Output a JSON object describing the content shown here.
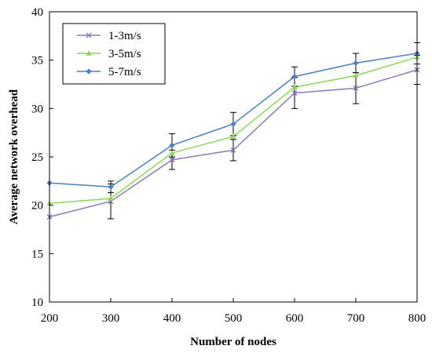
{
  "chart_data": {
    "type": "line",
    "title": "",
    "xlabel": "Number of nodes",
    "ylabel": "Average network overhead",
    "x": [
      200,
      300,
      400,
      500,
      600,
      700,
      800
    ],
    "xlim": [
      200,
      800
    ],
    "ylim": [
      10,
      40
    ],
    "xticks": [
      "200",
      "300",
      "400",
      "500",
      "600",
      "700",
      "800"
    ],
    "yticks": [
      "10",
      "15",
      "20",
      "25",
      "30",
      "35",
      "40"
    ],
    "grid": false,
    "legend_position": "top-left",
    "series": [
      {
        "name": "1-3m/s",
        "color": "#8a7bb5",
        "marker": "x",
        "values": [
          18.8,
          20.4,
          24.7,
          25.7,
          31.6,
          32.1,
          34.0
        ],
        "error": [
          null,
          1.8,
          1.0,
          1.1,
          1.6,
          1.6,
          1.5
        ]
      },
      {
        "name": "3-5m/s",
        "color": "#8ed65a",
        "marker": "triangle",
        "values": [
          20.2,
          20.7,
          25.4,
          27.1,
          32.2,
          33.4,
          35.3
        ],
        "error": [
          null,
          null,
          null,
          null,
          null,
          null,
          null
        ]
      },
      {
        "name": "5-7m/s",
        "color": "#4d7fbf",
        "marker": "diamond",
        "values": [
          22.3,
          21.9,
          26.2,
          28.4,
          33.3,
          34.7,
          35.7
        ],
        "error": [
          null,
          0.6,
          1.2,
          1.2,
          1.0,
          1.0,
          1.1
        ]
      }
    ]
  }
}
